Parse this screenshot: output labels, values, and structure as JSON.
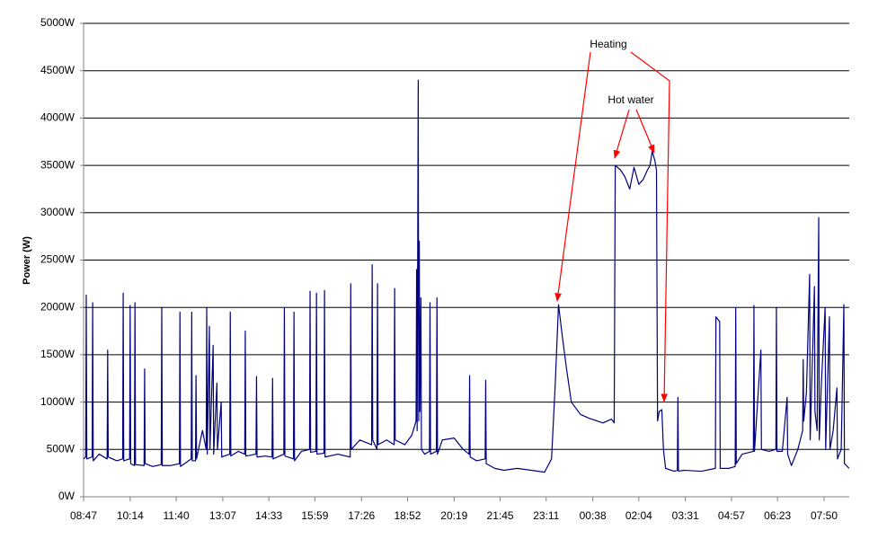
{
  "chart_data": {
    "type": "line",
    "y_label": "Power (W)",
    "annotations": [
      "Heating",
      "Hot water"
    ],
    "color": "#000080",
    "grid": true,
    "xlim": [
      527,
      1957
    ],
    "ylim": [
      0,
      5000
    ],
    "xticks": [
      {
        "value": 527,
        "label": "08:47"
      },
      {
        "value": 614,
        "label": "10:14"
      },
      {
        "value": 700,
        "label": "11:40"
      },
      {
        "value": 787,
        "label": "13:07"
      },
      {
        "value": 873,
        "label": "14:33"
      },
      {
        "value": 959,
        "label": "15:59"
      },
      {
        "value": 1046,
        "label": "17:26"
      },
      {
        "value": 1132,
        "label": "18:52"
      },
      {
        "value": 1219,
        "label": "20:19"
      },
      {
        "value": 1305,
        "label": "21:45"
      },
      {
        "value": 1391,
        "label": "23:11"
      },
      {
        "value": 1478,
        "label": "00:38"
      },
      {
        "value": 1564,
        "label": "02:04"
      },
      {
        "value": 1651,
        "label": "03:31"
      },
      {
        "value": 1737,
        "label": "04:57"
      },
      {
        "value": 1823,
        "label": "06:23"
      },
      {
        "value": 1910,
        "label": "07:50"
      }
    ],
    "yticks": [
      {
        "value": 0,
        "label": "0W"
      },
      {
        "value": 500,
        "label": "500W"
      },
      {
        "value": 1000,
        "label": "1000W"
      },
      {
        "value": 1500,
        "label": "1500W"
      },
      {
        "value": 2000,
        "label": "2000W"
      },
      {
        "value": 2500,
        "label": "2500W"
      },
      {
        "value": 3000,
        "label": "3000W"
      },
      {
        "value": 3500,
        "label": "3500W"
      },
      {
        "value": 4000,
        "label": "4000W"
      },
      {
        "value": 4500,
        "label": "4500W"
      },
      {
        "value": 5000,
        "label": "5000W"
      }
    ],
    "x": [
      527,
      531,
      532,
      533,
      543,
      544,
      545,
      556,
      571,
      572,
      573,
      589,
      600,
      601,
      602,
      613,
      614,
      615,
      622,
      623,
      624,
      640,
      641,
      642,
      656,
      672,
      673,
      674,
      690,
      706,
      707,
      708,
      728,
      729,
      730,
      736,
      737,
      738,
      749,
      756,
      757,
      758,
      762,
      763,
      769,
      770,
      776,
      777,
      784,
      785,
      800,
      801,
      802,
      816,
      828,
      829,
      830,
      849,
      850,
      851,
      866,
      879,
      880,
      881,
      901,
      902,
      903,
      919,
      920,
      921,
      934,
      949,
      950,
      951,
      961,
      962,
      963,
      976,
      977,
      978,
      1002,
      1025,
      1026,
      1027,
      1043,
      1065,
      1066,
      1067,
      1075,
      1076,
      1077,
      1093,
      1107,
      1108,
      1109,
      1127,
      1140,
      1148,
      1149,
      1150,
      1152,
      1153,
      1154,
      1155,
      1157,
      1158,
      1164,
      1173,
      1174,
      1175,
      1186,
      1187,
      1188,
      1197,
      1219,
      1236,
      1247,
      1248,
      1249,
      1261,
      1277,
      1278,
      1279,
      1295,
      1312,
      1337,
      1363,
      1388,
      1401,
      1408,
      1414,
      1421,
      1429,
      1438,
      1455,
      1471,
      1497,
      1513,
      1518,
      1520,
      1530,
      1538,
      1547,
      1555,
      1564,
      1572,
      1580,
      1585,
      1589,
      1594,
      1597,
      1599,
      1602,
      1607,
      1610,
      1614,
      1630,
      1636,
      1637,
      1638,
      1648,
      1681,
      1707,
      1708,
      1715,
      1716,
      1732,
      1744,
      1745,
      1746,
      1757,
      1778,
      1779,
      1780,
      1792,
      1793,
      1807,
      1820,
      1821,
      1822,
      1832,
      1841,
      1842,
      1849,
      1861,
      1870,
      1871,
      1872,
      1877,
      1883,
      1884,
      1892,
      1893,
      1897,
      1900,
      1901,
      1905,
      1912,
      1913,
      1920,
      1921,
      1927,
      1934,
      1935,
      1942,
      1947,
      1948,
      1957
    ],
    "values": [
      400,
      420,
      2130,
      400,
      420,
      2050,
      380,
      450,
      400,
      1550,
      420,
      380,
      400,
      2150,
      380,
      400,
      2020,
      350,
      330,
      2050,
      340,
      330,
      1350,
      350,
      320,
      340,
      2000,
      330,
      330,
      350,
      1950,
      320,
      400,
      1950,
      380,
      380,
      1280,
      400,
      700,
      500,
      2000,
      450,
      1800,
      500,
      1600,
      450,
      1200,
      500,
      1000,
      420,
      450,
      1950,
      430,
      480,
      450,
      1750,
      430,
      450,
      1270,
      420,
      430,
      420,
      1250,
      400,
      450,
      2000,
      430,
      400,
      1950,
      380,
      480,
      500,
      2170,
      470,
      480,
      2150,
      450,
      460,
      2180,
      420,
      450,
      420,
      2250,
      500,
      600,
      550,
      2450,
      600,
      500,
      2250,
      550,
      600,
      550,
      2200,
      600,
      550,
      650,
      800,
      2400,
      700,
      4400,
      800,
      2700,
      900,
      2100,
      500,
      450,
      480,
      2050,
      450,
      480,
      2100,
      450,
      600,
      620,
      500,
      450,
      1280,
      420,
      380,
      400,
      1230,
      350,
      300,
      280,
      300,
      280,
      260,
      400,
      1200,
      2030,
      1700,
      1350,
      1000,
      870,
      830,
      780,
      820,
      780,
      3500,
      3450,
      3380,
      3250,
      3480,
      3300,
      3350,
      3450,
      3500,
      3650,
      3550,
      3450,
      800,
      900,
      920,
      500,
      300,
      270,
      280,
      1050,
      270,
      280,
      270,
      300,
      1900,
      1850,
      300,
      300,
      320,
      2000,
      350,
      450,
      480,
      2020,
      480,
      1550,
      500,
      480,
      500,
      2000,
      480,
      480,
      1050,
      450,
      330,
      500,
      700,
      1450,
      800,
      1100,
      2350,
      600,
      2220,
      900,
      700,
      2950,
      600,
      1200,
      2000,
      500,
      1900,
      500,
      700,
      1150,
      400,
      500,
      2030,
      350,
      300
    ]
  }
}
